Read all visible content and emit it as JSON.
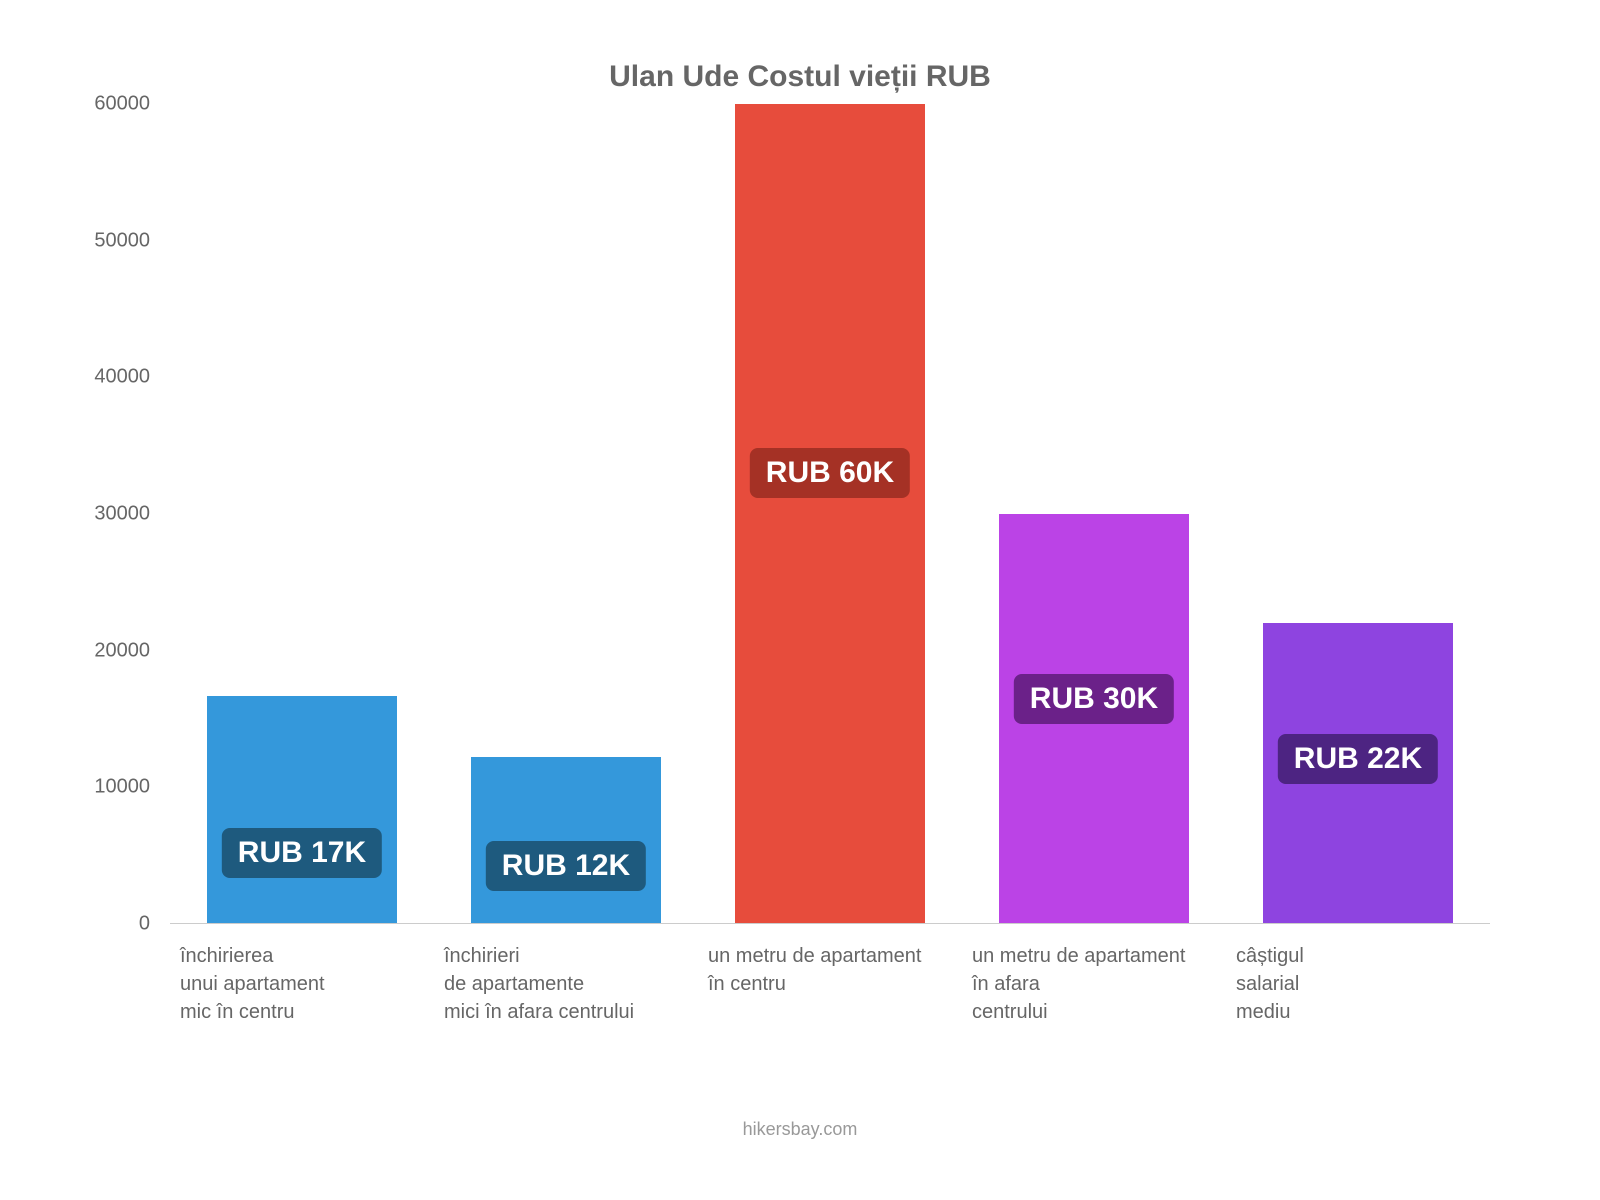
{
  "chart": {
    "type": "bar",
    "title": "Ulan Ude Costul vieții RUB",
    "title_fontsize": 30,
    "title_color": "#666666",
    "background_color": "#ffffff",
    "ylim": [
      0,
      60000
    ],
    "yticks": [
      0,
      10000,
      20000,
      30000,
      40000,
      50000,
      60000
    ],
    "tick_fontsize": 20,
    "tick_color": "#666666",
    "baseline_color": "#cccccc",
    "bar_width": 0.72,
    "categories": [
      {
        "lines": [
          "închirierea",
          "unui apartament",
          "mic în centru"
        ],
        "value": 16700,
        "color": "#3498db",
        "badge_color": "#1e5a7e",
        "value_label": "RUB 17K",
        "badge_pos": "low"
      },
      {
        "lines": [
          "închirieri",
          "de apartamente",
          "mici în afara centrului"
        ],
        "value": 12200,
        "color": "#3498db",
        "badge_color": "#1e5a7e",
        "value_label": "RUB 12K",
        "badge_pos": "low"
      },
      {
        "lines": [
          "un metru de apartament",
          "în centru"
        ],
        "value": 60000,
        "color": "#e74c3c",
        "badge_color": "#a53125",
        "value_label": "RUB 60K",
        "badge_pos": "mid"
      },
      {
        "lines": [
          "un metru de apartament",
          "în afara",
          "centrului"
        ],
        "value": 30000,
        "color": "#bb43e6",
        "badge_color": "#6b2189",
        "value_label": "RUB 30K",
        "badge_pos": "mid"
      },
      {
        "lines": [
          "câștigul",
          "salarial",
          "mediu"
        ],
        "value": 22000,
        "color": "#8e44e0",
        "badge_color": "#4d2482",
        "value_label": "RUB 22K",
        "badge_pos": "mid"
      }
    ],
    "attribution": "hikersbay.com",
    "attribution_color": "#999999",
    "attribution_fontsize": 18
  }
}
